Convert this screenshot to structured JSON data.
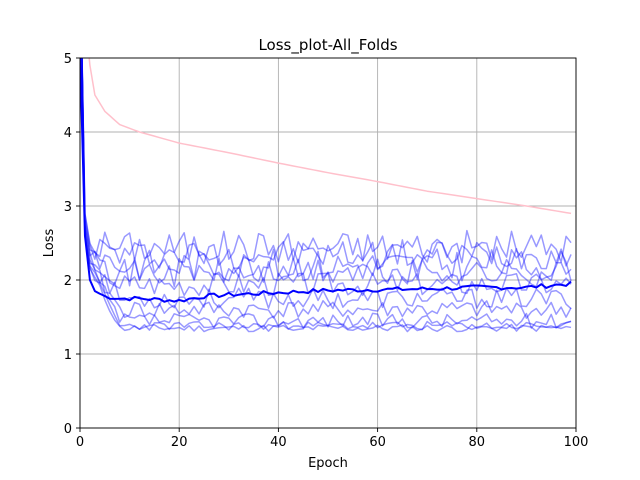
{
  "chart_data": {
    "type": "line",
    "title": "Loss_plot-All_Folds",
    "xlabel": "Epoch",
    "ylabel": "Loss",
    "xlim": [
      0,
      100
    ],
    "ylim": [
      0,
      5
    ],
    "xticks": [
      0,
      20,
      40,
      60,
      80,
      100
    ],
    "yticks": [
      0,
      1,
      2,
      3,
      4,
      5
    ],
    "grid": true,
    "legend": "none",
    "colors": {
      "train_loss": "#ffc0cb",
      "fold_loss": "#0000ff",
      "mean_loss": "#0000ff"
    },
    "series": [
      {
        "role": "train",
        "keypoints": [
          [
            0,
            7.0
          ],
          [
            1,
            5.6
          ],
          [
            2,
            4.9
          ],
          [
            3,
            4.5
          ],
          [
            5,
            4.28
          ],
          [
            8,
            4.1
          ],
          [
            12,
            4.0
          ],
          [
            20,
            3.85
          ],
          [
            30,
            3.72
          ],
          [
            40,
            3.58
          ],
          [
            50,
            3.45
          ],
          [
            60,
            3.33
          ],
          [
            70,
            3.2
          ],
          [
            80,
            3.1
          ],
          [
            90,
            3.0
          ],
          [
            99,
            2.9
          ]
        ]
      },
      {
        "role": "fold",
        "level": 1.35,
        "amp": 0.05,
        "seed": 11,
        "early": 1.45
      },
      {
        "role": "fold",
        "level": 1.38,
        "amp": 0.06,
        "seed": 23,
        "early": 1.5
      },
      {
        "role": "fold",
        "level": 1.45,
        "amp": 0.1,
        "seed": 37,
        "early": 1.55
      },
      {
        "role": "fold",
        "level": 1.6,
        "amp": 0.12,
        "seed": 41,
        "early": 1.65
      },
      {
        "role": "fold",
        "level": 1.75,
        "amp": 0.14,
        "seed": 53,
        "early": 1.8
      },
      {
        "role": "fold",
        "level": 1.95,
        "amp": 0.16,
        "seed": 67,
        "early": 1.95
      },
      {
        "role": "fold",
        "level": 2.1,
        "amp": 0.2,
        "seed": 71,
        "early": 2.05
      },
      {
        "role": "fold",
        "level": 2.2,
        "amp": 0.22,
        "seed": 83,
        "early": 2.2
      },
      {
        "role": "fold",
        "level": 2.35,
        "amp": 0.2,
        "seed": 97,
        "early": 2.45
      },
      {
        "role": "fold",
        "level": 2.45,
        "amp": 0.22,
        "seed": 101,
        "early": 2.5
      },
      {
        "role": "mean",
        "keypoints": [
          [
            0,
            5.1
          ],
          [
            1,
            2.6
          ],
          [
            2,
            2.0
          ],
          [
            3,
            1.85
          ],
          [
            5,
            1.78
          ],
          [
            8,
            1.75
          ],
          [
            12,
            1.75
          ],
          [
            20,
            1.72
          ],
          [
            25,
            1.78
          ],
          [
            30,
            1.8
          ],
          [
            40,
            1.83
          ],
          [
            50,
            1.86
          ],
          [
            60,
            1.87
          ],
          [
            70,
            1.88
          ],
          [
            80,
            1.9
          ],
          [
            90,
            1.9
          ],
          [
            99,
            1.95
          ]
        ]
      }
    ]
  }
}
